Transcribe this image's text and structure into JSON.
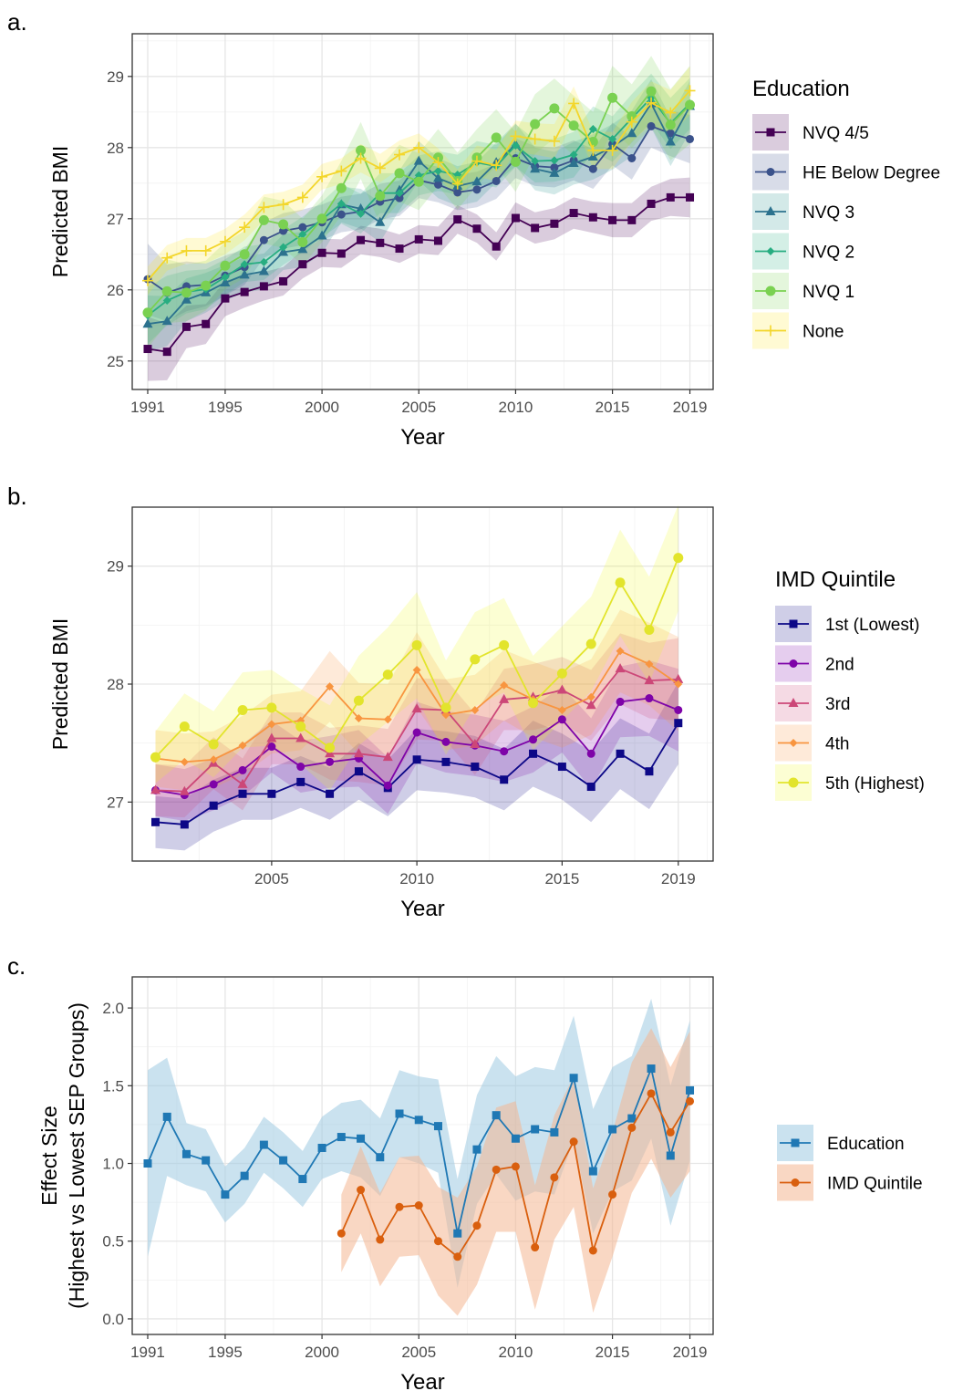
{
  "chart_data": [
    {
      "panel_label": "a.",
      "type": "line",
      "xlabel": "Year",
      "ylabel": "Predicted BMI",
      "xlim": [
        1990.2,
        2020.2
      ],
      "ylim": [
        24.6,
        29.6
      ],
      "xticks": [
        1991,
        1995,
        2000,
        2005,
        2010,
        2015,
        2019
      ],
      "yticks": [
        25,
        26,
        27,
        28,
        29
      ],
      "grid": true,
      "legend": {
        "title": "Education",
        "placement": "right"
      },
      "x": [
        1991,
        1992,
        1993,
        1994,
        1995,
        1996,
        1997,
        1998,
        1999,
        2000,
        2001,
        2002,
        2003,
        2004,
        2005,
        2006,
        2007,
        2008,
        2009,
        2010,
        2011,
        2012,
        2013,
        2014,
        2015,
        2016,
        2017,
        2018,
        2019
      ],
      "series": [
        {
          "name": "NVQ 4/5",
          "color": "#440154",
          "marker": "square",
          "values": [
            25.17,
            25.13,
            25.48,
            25.52,
            25.88,
            25.97,
            26.05,
            26.12,
            26.36,
            26.52,
            26.51,
            26.7,
            26.66,
            26.58,
            26.71,
            26.69,
            26.99,
            26.86,
            26.61,
            27.01,
            26.87,
            26.93,
            27.08,
            27.02,
            26.98,
            26.98,
            27.21,
            27.3,
            27.3
          ],
          "band": [
            0.45,
            0.4,
            0.3,
            0.28,
            0.25,
            0.22,
            0.2,
            0.2,
            0.2,
            0.2,
            0.2,
            0.2,
            0.2,
            0.2,
            0.2,
            0.2,
            0.2,
            0.2,
            0.2,
            0.22,
            0.22,
            0.22,
            0.22,
            0.22,
            0.24,
            0.24,
            0.24,
            0.26,
            0.28
          ]
        },
        {
          "name": "HE Below Degree",
          "color": "#3B528B",
          "marker": "circle",
          "values": [
            26.15,
            25.96,
            26.05,
            26.07,
            26.2,
            26.32,
            26.7,
            26.83,
            26.88,
            26.95,
            27.06,
            27.1,
            27.24,
            27.29,
            27.54,
            27.48,
            27.37,
            27.41,
            27.53,
            27.85,
            27.74,
            27.72,
            27.82,
            27.7,
            28.05,
            27.85,
            28.3,
            28.2,
            28.12
          ],
          "band": [
            0.5,
            0.4,
            0.35,
            0.3,
            0.28,
            0.25,
            0.25,
            0.25,
            0.25,
            0.25,
            0.25,
            0.25,
            0.25,
            0.25,
            0.25,
            0.25,
            0.25,
            0.25,
            0.25,
            0.28,
            0.28,
            0.28,
            0.28,
            0.28,
            0.3,
            0.3,
            0.3,
            0.32,
            0.34
          ]
        },
        {
          "name": "NVQ 3",
          "color": "#21908C",
          "stroke": "#2C728E",
          "marker": "triangle",
          "values": [
            25.52,
            25.56,
            25.86,
            25.96,
            26.1,
            26.21,
            26.26,
            26.53,
            26.57,
            26.76,
            27.2,
            27.14,
            26.95,
            27.4,
            27.81,
            27.57,
            27.46,
            27.52,
            27.79,
            28.04,
            27.7,
            27.64,
            27.78,
            27.87,
            28.01,
            28.2,
            28.62,
            28.08,
            28.58
          ],
          "band": [
            0.4,
            0.35,
            0.3,
            0.28,
            0.25,
            0.25,
            0.25,
            0.25,
            0.25,
            0.25,
            0.25,
            0.28,
            0.28,
            0.28,
            0.28,
            0.28,
            0.28,
            0.28,
            0.28,
            0.3,
            0.3,
            0.3,
            0.3,
            0.32,
            0.32,
            0.32,
            0.34,
            0.34,
            0.36
          ]
        },
        {
          "name": "NVQ 2",
          "color": "#27AD81",
          "marker": "diamond",
          "values": [
            25.64,
            25.85,
            25.97,
            26.01,
            26.18,
            26.36,
            26.39,
            26.6,
            26.78,
            26.99,
            27.21,
            27.07,
            27.36,
            27.36,
            27.61,
            27.67,
            27.62,
            27.79,
            27.74,
            28.03,
            27.81,
            27.82,
            27.9,
            28.26,
            28.12,
            28.41,
            28.7,
            28.34,
            28.62
          ],
          "band": [
            0.4,
            0.35,
            0.3,
            0.28,
            0.25,
            0.25,
            0.25,
            0.25,
            0.25,
            0.25,
            0.28,
            0.28,
            0.28,
            0.28,
            0.28,
            0.28,
            0.28,
            0.3,
            0.3,
            0.3,
            0.3,
            0.3,
            0.32,
            0.32,
            0.32,
            0.34,
            0.34,
            0.36,
            0.36
          ]
        },
        {
          "name": "NVQ 1",
          "color": "#7AD151",
          "marker": "circle-large",
          "values": [
            25.68,
            25.98,
            25.96,
            26.06,
            26.34,
            26.5,
            26.98,
            26.92,
            26.67,
            27.0,
            27.43,
            27.96,
            27.32,
            27.64,
            27.52,
            27.86,
            27.53,
            27.86,
            28.14,
            27.8,
            28.33,
            28.55,
            28.31,
            28.08,
            28.7,
            28.44,
            28.79,
            28.32,
            28.6
          ],
          "band": [
            0.5,
            0.45,
            0.4,
            0.35,
            0.33,
            0.33,
            0.33,
            0.33,
            0.33,
            0.33,
            0.38,
            0.4,
            0.4,
            0.4,
            0.4,
            0.4,
            0.4,
            0.4,
            0.4,
            0.42,
            0.42,
            0.42,
            0.42,
            0.42,
            0.45,
            0.45,
            0.5,
            0.5,
            0.55
          ]
        },
        {
          "name": "None",
          "color": "#FDE725",
          "stroke": "#F3D62B",
          "marker": "plus",
          "values": [
            26.13,
            26.45,
            26.55,
            26.55,
            26.68,
            26.88,
            27.16,
            27.2,
            27.3,
            27.59,
            27.67,
            27.85,
            27.71,
            27.9,
            28.0,
            27.79,
            27.49,
            27.81,
            27.75,
            28.16,
            28.12,
            28.09,
            28.62,
            27.96,
            27.96,
            28.36,
            28.63,
            28.49,
            28.8
          ],
          "band": [
            0.2,
            0.18,
            0.18,
            0.18,
            0.18,
            0.18,
            0.18,
            0.18,
            0.18,
            0.18,
            0.18,
            0.2,
            0.2,
            0.2,
            0.2,
            0.2,
            0.2,
            0.22,
            0.22,
            0.22,
            0.22,
            0.24,
            0.24,
            0.26,
            0.26,
            0.28,
            0.3,
            0.32,
            0.34
          ]
        }
      ]
    },
    {
      "panel_label": "b.",
      "type": "line",
      "xlabel": "Year",
      "ylabel": "Predicted BMI",
      "xlim": [
        2000.2,
        2020.2
      ],
      "ylim": [
        26.5,
        29.5
      ],
      "xticks": [
        2005,
        2010,
        2015,
        2019
      ],
      "yticks": [
        27,
        28,
        29
      ],
      "grid": true,
      "legend": {
        "title": "IMD Quintile",
        "placement": "right"
      },
      "x": [
        2001,
        2002,
        2003,
        2004,
        2005,
        2006,
        2007,
        2008,
        2009,
        2010,
        2011,
        2012,
        2013,
        2014,
        2015,
        2016,
        2017,
        2018,
        2019
      ],
      "series": [
        {
          "name": "1st (Lowest)",
          "color": "#0D0887",
          "marker": "square",
          "values": [
            26.83,
            26.81,
            26.97,
            27.07,
            27.07,
            27.17,
            27.07,
            27.26,
            27.12,
            27.36,
            27.34,
            27.3,
            27.19,
            27.41,
            27.3,
            27.13,
            27.41,
            27.26,
            27.67
          ],
          "band": [
            0.22,
            0.22,
            0.22,
            0.22,
            0.22,
            0.22,
            0.22,
            0.24,
            0.24,
            0.26,
            0.26,
            0.26,
            0.26,
            0.28,
            0.28,
            0.3,
            0.3,
            0.32,
            0.35
          ]
        },
        {
          "name": "2nd",
          "color": "#7E03A8",
          "marker": "circle",
          "values": [
            27.1,
            27.06,
            27.15,
            27.27,
            27.47,
            27.3,
            27.34,
            27.37,
            27.14,
            27.59,
            27.51,
            27.48,
            27.43,
            27.53,
            27.7,
            27.41,
            27.85,
            27.88,
            27.78
          ],
          "band": [
            0.22,
            0.22,
            0.22,
            0.22,
            0.22,
            0.22,
            0.22,
            0.24,
            0.24,
            0.26,
            0.26,
            0.26,
            0.26,
            0.28,
            0.28,
            0.3,
            0.3,
            0.32,
            0.35
          ]
        },
        {
          "name": "3rd",
          "color": "#CC4778",
          "marker": "triangle",
          "values": [
            27.1,
            27.09,
            27.33,
            27.15,
            27.54,
            27.54,
            27.41,
            27.41,
            27.38,
            27.79,
            27.78,
            27.49,
            27.87,
            27.89,
            27.95,
            27.82,
            28.13,
            28.03,
            28.04
          ],
          "band": [
            0.22,
            0.22,
            0.22,
            0.22,
            0.22,
            0.22,
            0.22,
            0.24,
            0.24,
            0.26,
            0.26,
            0.26,
            0.26,
            0.28,
            0.28,
            0.3,
            0.3,
            0.32,
            0.35
          ]
        },
        {
          "name": "4th",
          "color": "#F89540",
          "marker": "diamond",
          "values": [
            27.37,
            27.34,
            27.36,
            27.48,
            27.66,
            27.69,
            27.98,
            27.71,
            27.7,
            28.12,
            27.74,
            27.78,
            27.99,
            27.87,
            27.78,
            27.89,
            28.28,
            28.17,
            28.0
          ],
          "band": [
            0.24,
            0.24,
            0.24,
            0.25,
            0.25,
            0.25,
            0.3,
            0.3,
            0.3,
            0.32,
            0.3,
            0.3,
            0.3,
            0.32,
            0.32,
            0.32,
            0.35,
            0.35,
            0.4
          ]
        },
        {
          "name": "5th (Highest)",
          "color": "#F0F921",
          "stroke": "#E2E42C",
          "marker": "circle-large",
          "values": [
            27.38,
            27.64,
            27.49,
            27.78,
            27.8,
            27.64,
            27.46,
            27.86,
            28.08,
            28.33,
            27.8,
            28.21,
            28.33,
            27.84,
            28.09,
            28.34,
            28.86,
            28.46,
            29.07
          ],
          "band": [
            0.22,
            0.28,
            0.28,
            0.32,
            0.32,
            0.32,
            0.36,
            0.38,
            0.4,
            0.45,
            0.4,
            0.4,
            0.4,
            0.4,
            0.4,
            0.4,
            0.45,
            0.45,
            0.45
          ]
        }
      ]
    },
    {
      "panel_label": "c.",
      "type": "line",
      "xlabel": "Year",
      "ylabel": "Effect Size",
      "ylabel2": "(Highest vs Lowest SEP Groups)",
      "xlim": [
        1990.2,
        2020.2
      ],
      "ylim": [
        -0.1,
        2.2
      ],
      "xticks": [
        1991,
        1995,
        2000,
        2005,
        2010,
        2015,
        2019
      ],
      "yticks": [
        0.0,
        0.5,
        1.0,
        1.5,
        2.0
      ],
      "ytick_labels": [
        "0.0",
        "0.5",
        "1.0",
        "1.5",
        "2.0"
      ],
      "grid": true,
      "legend": {
        "placement": "right"
      },
      "series": [
        {
          "name": "Education",
          "color": "#1F78B4",
          "fill": "#9ECAE1",
          "marker": "square",
          "x": [
            1991,
            1992,
            1993,
            1994,
            1995,
            1996,
            1997,
            1998,
            1999,
            2000,
            2001,
            2002,
            2003,
            2004,
            2005,
            2006,
            2007,
            2008,
            2009,
            2010,
            2011,
            2012,
            2013,
            2014,
            2015,
            2016,
            2017,
            2018,
            2019
          ],
          "values": [
            1.0,
            1.3,
            1.06,
            1.02,
            0.8,
            0.92,
            1.12,
            1.02,
            0.9,
            1.1,
            1.17,
            1.16,
            1.04,
            1.32,
            1.28,
            1.24,
            0.55,
            1.09,
            1.31,
            1.16,
            1.22,
            1.2,
            1.55,
            0.95,
            1.22,
            1.29,
            1.61,
            1.05,
            1.47
          ],
          "band": [
            0.6,
            0.38,
            0.2,
            0.2,
            0.18,
            0.18,
            0.18,
            0.18,
            0.18,
            0.2,
            0.22,
            0.25,
            0.25,
            0.28,
            0.28,
            0.3,
            0.35,
            0.35,
            0.38,
            0.4,
            0.4,
            0.4,
            0.4,
            0.4,
            0.4,
            0.4,
            0.45,
            0.45,
            0.45
          ]
        },
        {
          "name": "IMD Quintile",
          "color": "#D95F0E",
          "fill": "#F4B791",
          "marker": "circle",
          "x": [
            2001,
            2002,
            2003,
            2004,
            2005,
            2006,
            2007,
            2008,
            2009,
            2010,
            2011,
            2012,
            2013,
            2014,
            2015,
            2016,
            2017,
            2018,
            2019
          ],
          "values": [
            0.55,
            0.83,
            0.51,
            0.72,
            0.73,
            0.5,
            0.4,
            0.6,
            0.96,
            0.98,
            0.46,
            0.91,
            1.14,
            0.44,
            0.8,
            1.23,
            1.45,
            1.2,
            1.4
          ],
          "band": [
            0.25,
            0.28,
            0.3,
            0.32,
            0.32,
            0.35,
            0.38,
            0.38,
            0.4,
            0.42,
            0.4,
            0.4,
            0.42,
            0.4,
            0.4,
            0.42,
            0.42,
            0.42,
            0.45
          ]
        }
      ]
    }
  ]
}
